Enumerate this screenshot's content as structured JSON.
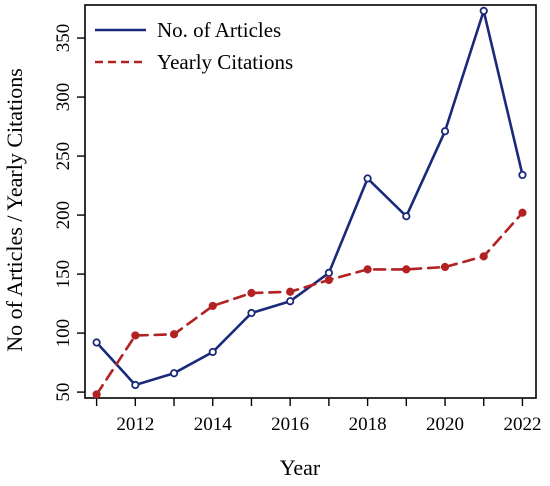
{
  "chart_data": {
    "type": "line",
    "title": "",
    "xlabel": "Year",
    "ylabel": "No of Articles / Yearly Citations",
    "x": [
      2011,
      2012,
      2013,
      2014,
      2015,
      2016,
      2017,
      2018,
      2019,
      2020,
      2021,
      2022
    ],
    "xticks": [
      2012,
      2014,
      2016,
      2018,
      2020,
      2022
    ],
    "yticks": [
      50,
      100,
      150,
      200,
      250,
      300,
      350
    ],
    "xlim": [
      2010.7,
      2022.35
    ],
    "ylim": [
      45,
      378
    ],
    "grid": false,
    "legend_position": "top-left",
    "series": [
      {
        "name": "No. of Articles",
        "color": "#1a2a7a",
        "line_style": "solid",
        "marker": "open-circle",
        "values": [
          92,
          56,
          66,
          84,
          117,
          127,
          151,
          231,
          199,
          271,
          373,
          234
        ]
      },
      {
        "name": "Yearly Citations",
        "color": "#b22222",
        "line_style": "dashed",
        "marker": "filled-circle",
        "values": [
          48,
          98,
          99,
          123,
          134,
          135,
          145,
          154,
          154,
          156,
          165,
          202
        ]
      }
    ]
  }
}
